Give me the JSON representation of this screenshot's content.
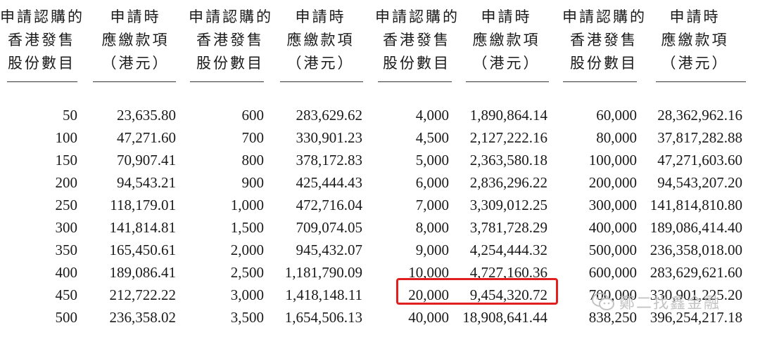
{
  "header": {
    "col_shares": [
      "申請認購的",
      "香港發售",
      "股份數目"
    ],
    "col_amount": [
      "申請時",
      "應繳款項",
      "（港元）"
    ]
  },
  "table": {
    "rows": [
      [
        "50",
        "23,635.80",
        "600",
        "283,629.62",
        "4,000",
        "1,890,864.14",
        "60,000",
        "28,362,962.16"
      ],
      [
        "100",
        "47,271.60",
        "700",
        "330,901.23",
        "4,500",
        "2,127,222.16",
        "80,000",
        "37,817,282.88"
      ],
      [
        "150",
        "70,907.41",
        "800",
        "378,172.83",
        "5,000",
        "2,363,580.18",
        "100,000",
        "47,271,603.60"
      ],
      [
        "200",
        "94,543.21",
        "900",
        "425,444.43",
        "6,000",
        "2,836,296.22",
        "200,000",
        "94,543,207.20"
      ],
      [
        "250",
        "118,179.01",
        "1,000",
        "472,716.04",
        "7,000",
        "3,309,012.25",
        "300,000",
        "141,814,810.80"
      ],
      [
        "300",
        "141,814.81",
        "1,500",
        "709,074.05",
        "8,000",
        "3,781,728.29",
        "400,000",
        "189,086,414.40"
      ],
      [
        "350",
        "165,450.61",
        "2,000",
        "945,432.07",
        "9,000",
        "4,254,444.32",
        "500,000",
        "236,358,018.00"
      ],
      [
        "400",
        "189,086.41",
        "2,500",
        "1,181,790.09",
        "10,000",
        "4,727,160.36",
        "600,000",
        "283,629,621.60"
      ],
      [
        "450",
        "212,722.22",
        "3,000",
        "1,418,148.11",
        "20,000",
        "9,454,320.72",
        "700,000",
        "330,901,225.20"
      ],
      [
        "500",
        "236,358.02",
        "3,500",
        "1,654,506.13",
        "40,000",
        "18,908,641.44",
        "838,250",
        "396,254,217.18"
      ]
    ],
    "highlighted": {
      "row": 8,
      "columns": [
        4,
        5
      ],
      "color": "#e02020"
    }
  },
  "watermark": {
    "text": "鄭二找鑫金融",
    "icon": "wechat-icon",
    "color": "#bdbdbd"
  }
}
